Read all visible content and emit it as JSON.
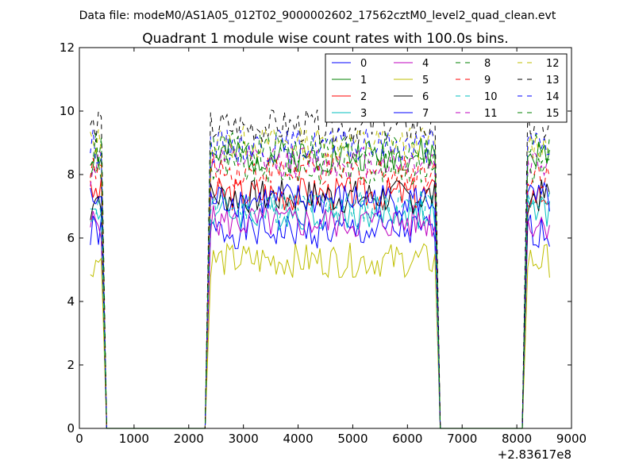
{
  "header": {
    "file_label": "Data file: modeM0/AS1A05_012T02_9000002602_17562cztM0_level2_quad_clean.evt"
  },
  "chart_data": {
    "type": "line",
    "title": "Quadrant 1 module wise count rates with 100.0s bins.",
    "xlabel": "",
    "ylabel": "",
    "x_offset_label": "+2.83617e8",
    "xlim": [
      0,
      9000
    ],
    "ylim": [
      0,
      12
    ],
    "xticks": [
      0,
      1000,
      2000,
      3000,
      4000,
      5000,
      6000,
      7000,
      8000,
      9000
    ],
    "yticks": [
      0,
      2,
      4,
      6,
      8,
      10,
      12
    ],
    "xtick_labels": [
      "0",
      "1000",
      "2000",
      "3000",
      "4000",
      "5000",
      "6000",
      "7000",
      "8000",
      "9000"
    ],
    "ytick_labels": [
      "0",
      "2",
      "4",
      "6",
      "8",
      "10",
      "12"
    ],
    "grid": false,
    "legend_position": "top-right",
    "segments": [
      {
        "x_start": 200,
        "x_end": 400,
        "rise_x": 150,
        "fall_end": 500
      },
      {
        "x_start": 2400,
        "x_end": 6500,
        "rise_x": 2300,
        "fall_end": 6600
      },
      {
        "x_start": 8200,
        "x_end": 8600,
        "rise_x": 8100,
        "fall_end": null
      }
    ],
    "series": [
      {
        "name": "0",
        "color": "#0000ff",
        "dash": "solid",
        "level": 6.2
      },
      {
        "name": "1",
        "color": "#008000",
        "dash": "solid",
        "level": 8.6
      },
      {
        "name": "2",
        "color": "#ff0000",
        "dash": "solid",
        "level": 7.4
      },
      {
        "name": "3",
        "color": "#00bfbf",
        "dash": "solid",
        "level": 6.8
      },
      {
        "name": "4",
        "color": "#bf00bf",
        "dash": "solid",
        "level": 6.5
      },
      {
        "name": "5",
        "color": "#bfbf00",
        "dash": "solid",
        "level": 5.3
      },
      {
        "name": "6",
        "color": "#000000",
        "dash": "solid",
        "level": 7.3
      },
      {
        "name": "7",
        "color": "#0000ff",
        "dash": "solid",
        "level": 7.2
      },
      {
        "name": "8",
        "color": "#008000",
        "dash": "dashed",
        "level": 8.2
      },
      {
        "name": "9",
        "color": "#ff0000",
        "dash": "dashed",
        "level": 8.1
      },
      {
        "name": "10",
        "color": "#00bfbf",
        "dash": "dashed",
        "level": 7.0
      },
      {
        "name": "11",
        "color": "#bf00bf",
        "dash": "dashed",
        "level": 8.4
      },
      {
        "name": "12",
        "color": "#bfbf00",
        "dash": "dashed",
        "level": 9.0
      },
      {
        "name": "13",
        "color": "#000000",
        "dash": "dashed",
        "level": 9.5
      },
      {
        "name": "14",
        "color": "#0000ff",
        "dash": "dashed",
        "level": 8.9
      },
      {
        "name": "15",
        "color": "#008000",
        "dash": "dashed",
        "level": 8.8
      }
    ]
  }
}
